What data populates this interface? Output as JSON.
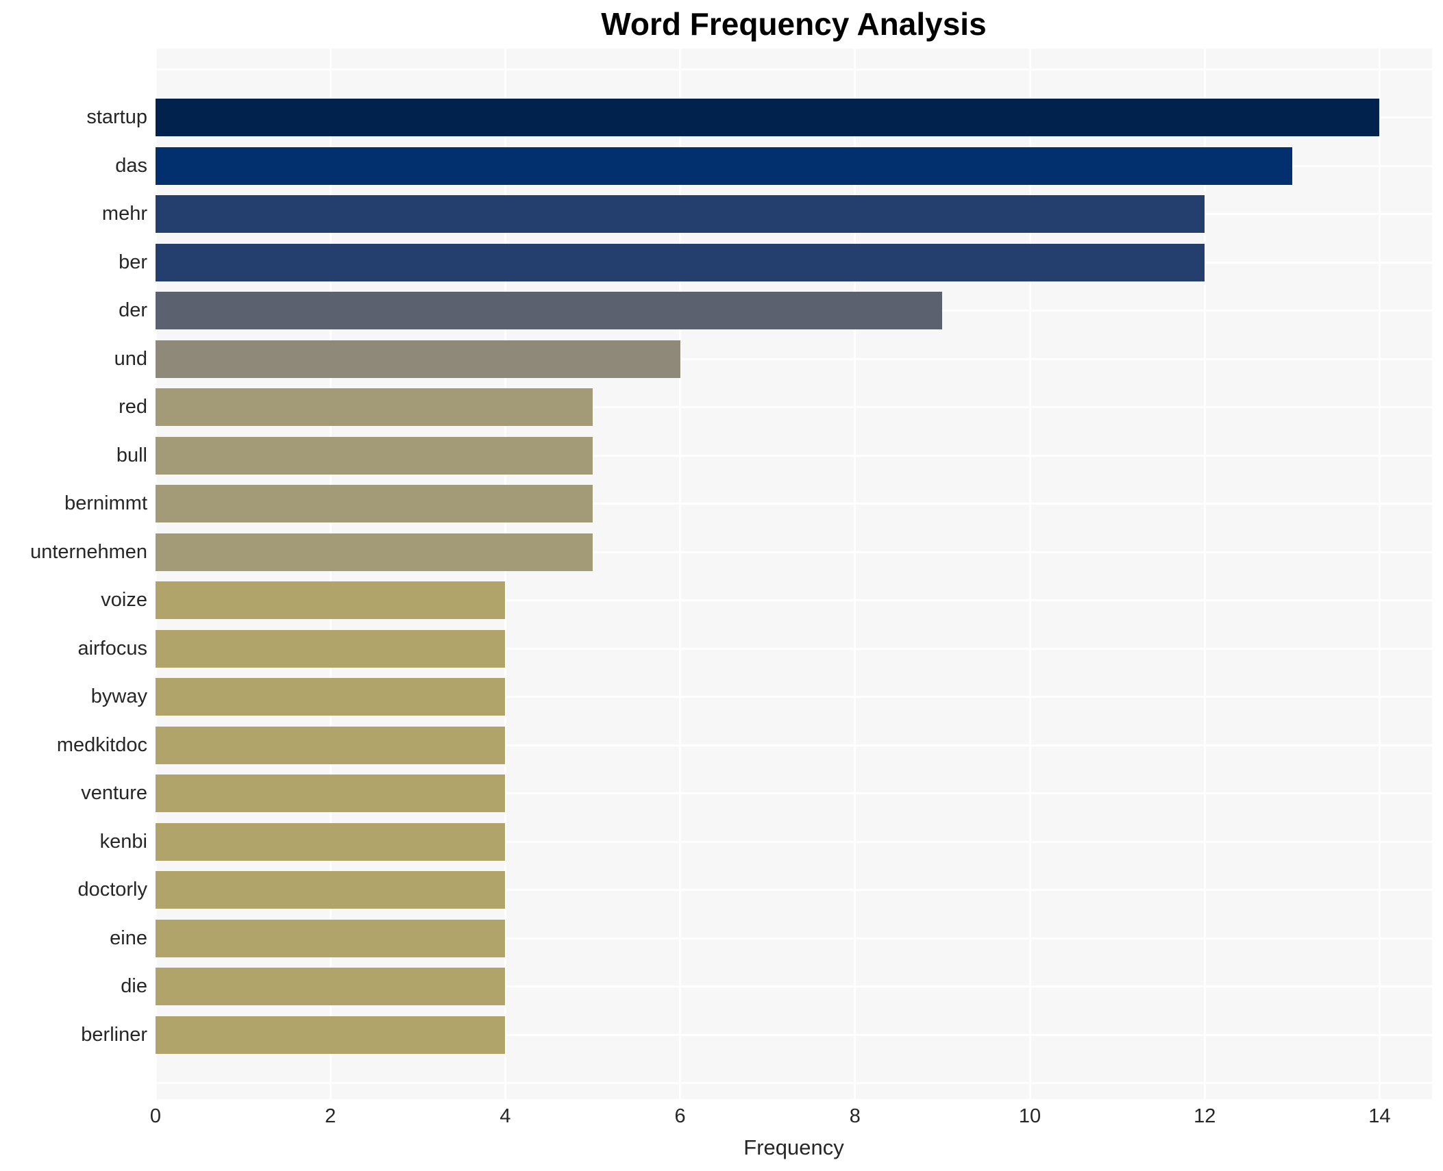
{
  "title": "Word Frequency Analysis",
  "chart_data": {
    "type": "bar",
    "orientation": "horizontal",
    "title": "Word Frequency Analysis",
    "xlabel": "Frequency",
    "ylabel": "",
    "categories": [
      "startup",
      "das",
      "mehr",
      "ber",
      "der",
      "und",
      "red",
      "bull",
      "bernimmt",
      "unternehmen",
      "voize",
      "airfocus",
      "byway",
      "medkitdoc",
      "venture",
      "kenbi",
      "doctorly",
      "eine",
      "die",
      "berliner"
    ],
    "values": [
      14,
      13,
      12,
      12,
      9,
      6,
      5,
      5,
      5,
      5,
      4,
      4,
      4,
      4,
      4,
      4,
      4,
      4,
      4,
      4
    ],
    "bar_colors": [
      "#01224d",
      "#02306e",
      "#243e6e",
      "#243e6e",
      "#5c6170",
      "#8f8979",
      "#a39b77",
      "#a39b77",
      "#a39b77",
      "#a39b77",
      "#b0a46a",
      "#b0a46a",
      "#b0a46a",
      "#b0a46a",
      "#b0a46a",
      "#b0a46a",
      "#b0a46a",
      "#b0a46a",
      "#b0a46a",
      "#b0a46a"
    ],
    "xticks": [
      0,
      2,
      4,
      6,
      8,
      10,
      12,
      14
    ],
    "xlim": [
      0,
      14.6
    ],
    "legend_position": "none",
    "grid": "on",
    "plot_background_color": "#f7f7f7",
    "gridline_color": "#ffffff",
    "text_color": "#262626",
    "title_color": "#000000"
  }
}
